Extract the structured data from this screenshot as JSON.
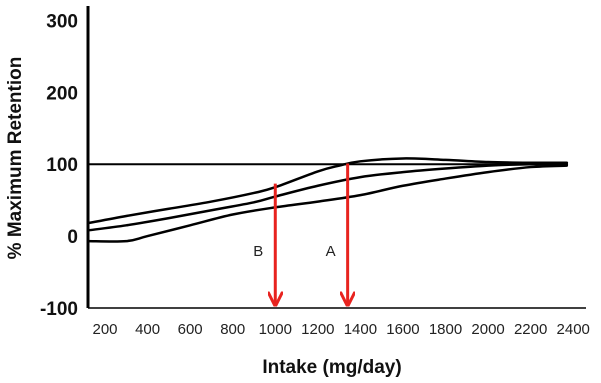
{
  "chart_data": {
    "type": "line",
    "title": "",
    "xlabel": "Intake (mg/day)",
    "ylabel": "% Maximum Retention",
    "xlim": [
      120,
      2460
    ],
    "ylim": [
      -100,
      320
    ],
    "x_ticks": [
      "200",
      "400",
      "600",
      "800",
      "1000",
      "1200",
      "1400",
      "1600",
      "1800",
      "2000",
      "2200",
      "2400"
    ],
    "y_ticks": [
      {
        "value": 300,
        "label": "300"
      },
      {
        "value": 200,
        "label": "200"
      },
      {
        "value": 100,
        "label": "100"
      },
      {
        "value": 0,
        "label": "0"
      },
      {
        "value": -100,
        "label": "-100"
      }
    ],
    "reference_line": {
      "y": 100
    },
    "series": [
      {
        "color": "#000000",
        "points": [
          [
            120,
            18
          ],
          [
            300,
            28
          ],
          [
            500,
            38
          ],
          [
            700,
            48
          ],
          [
            900,
            60
          ],
          [
            1000,
            68
          ],
          [
            1200,
            90
          ],
          [
            1300,
            98
          ],
          [
            1400,
            104
          ],
          [
            1600,
            108
          ],
          [
            1800,
            106
          ],
          [
            2000,
            103
          ],
          [
            2200,
            102
          ],
          [
            2370,
            102
          ]
        ]
      },
      {
        "color": "#000000",
        "points": [
          [
            120,
            8
          ],
          [
            300,
            15
          ],
          [
            500,
            25
          ],
          [
            700,
            36
          ],
          [
            900,
            47
          ],
          [
            1000,
            55
          ],
          [
            1200,
            70
          ],
          [
            1400,
            82
          ],
          [
            1600,
            89
          ],
          [
            1800,
            94
          ],
          [
            2000,
            98
          ],
          [
            2200,
            100
          ],
          [
            2370,
            100
          ]
        ]
      },
      {
        "color": "#000000",
        "points": [
          [
            120,
            -7
          ],
          [
            300,
            -7
          ],
          [
            400,
            0
          ],
          [
            600,
            15
          ],
          [
            800,
            30
          ],
          [
            1000,
            40
          ],
          [
            1200,
            48
          ],
          [
            1400,
            57
          ],
          [
            1600,
            70
          ],
          [
            1800,
            80
          ],
          [
            2000,
            89
          ],
          [
            2200,
            96
          ],
          [
            2370,
            98
          ]
        ]
      }
    ],
    "annotations": [
      {
        "label": "B",
        "x": 1000,
        "y_from": 73,
        "y_to": -100,
        "color": "#e8231f"
      },
      {
        "label": "A",
        "x": 1340,
        "y_from": 101,
        "y_to": -100,
        "color": "#e8231f"
      }
    ],
    "grid": false,
    "legend": "none"
  }
}
